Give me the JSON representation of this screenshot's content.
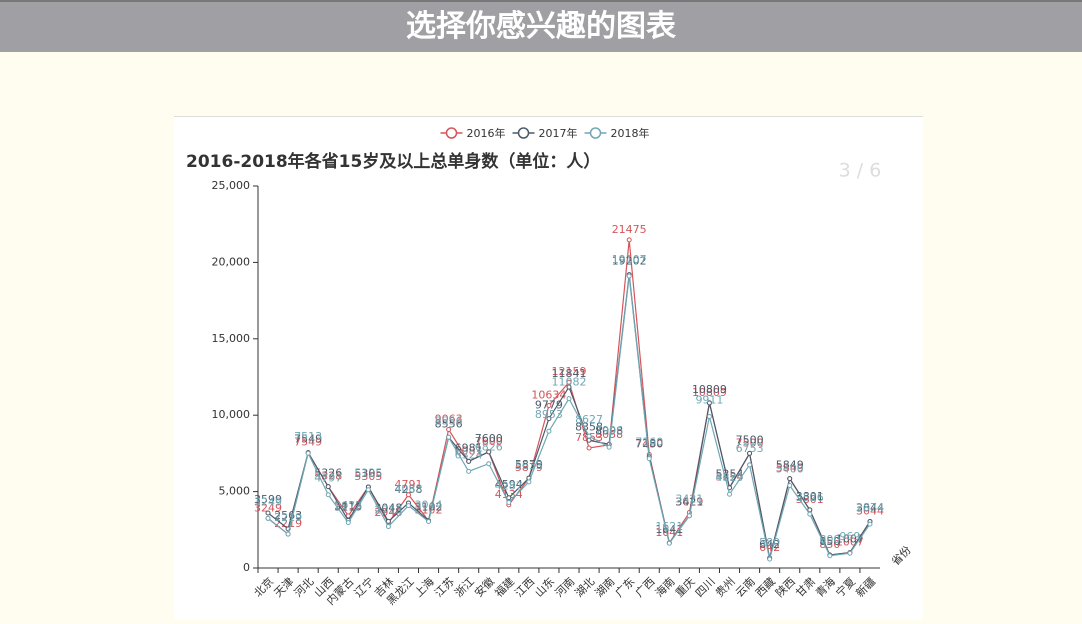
{
  "header": {
    "title": "选择你感兴趣的图表"
  },
  "page": {
    "indicator": "3 / 6"
  },
  "chart_data": {
    "type": "line",
    "title": "2016-2018年各省15岁及以上总单身数（单位：人）",
    "x_label": "省份",
    "categories": [
      "北京",
      "天津",
      "河北",
      "山西",
      "内蒙古",
      "辽宁",
      "吉林",
      "黑龙江",
      "上海",
      "江苏",
      "浙江",
      "安徽",
      "福建",
      "江西",
      "山东",
      "河南",
      "湖北",
      "湖南",
      "广东",
      "广西",
      "海南",
      "重庆",
      "四川",
      "贵州",
      "云南",
      "西藏",
      "陕西",
      "甘肃",
      "青海",
      "宁夏",
      "新疆"
    ],
    "series": [
      {
        "name": "2016年",
        "color": "#d6545b",
        "values": [
          3249,
          2219,
          7549,
          5328,
          3415,
          5305,
          2948,
          4791,
          3102,
          9063,
          6981,
          7600,
          4134,
          5879,
          10634,
          12159,
          7853,
          8058,
          21475,
          7430,
          1641,
          3629,
          10809,
          5254,
          7500,
          642,
          5849,
          3801,
          850,
          1007,
          3044
        ]
      },
      {
        "name": "2017年",
        "color": "#4a5a6a",
        "values": [
          3599,
          2563,
          7549,
          5326,
          3115,
          5305,
          3048,
          4258,
          3102,
          8556,
          6981,
          7600,
          4594,
          5879,
          9779,
          11841,
          8358,
          8098,
          19202,
          7280,
          1641,
          3421,
          10809,
          5254,
          7500,
          642,
          5849,
          3801,
          850,
          1007,
          3044
        ]
      },
      {
        "name": "2018年",
        "color": "#6fa8b4",
        "values": [
          3249,
          2219,
          7513,
          4797,
          2973,
          5125,
          2713,
          4083,
          3044,
          8556,
          6324,
          6826,
          4287,
          5633,
          8953,
          11082,
          8627,
          7906,
          19107,
          7160,
          1621,
          3421,
          9911,
          4829,
          6753,
          580,
          5400,
          3526,
          800,
          969,
          2874
        ]
      }
    ],
    "ylim": [
      0,
      25000
    ],
    "yticks": [
      0,
      {
        "value": 5000,
        "label": "5,000"
      },
      {
        "value": 10000,
        "label": "10,000"
      },
      {
        "value": 15000,
        "label": "15,000"
      },
      {
        "value": 20000,
        "label": "20,000"
      },
      {
        "value": 25000,
        "label": "25,000"
      }
    ],
    "legend": "top"
  }
}
